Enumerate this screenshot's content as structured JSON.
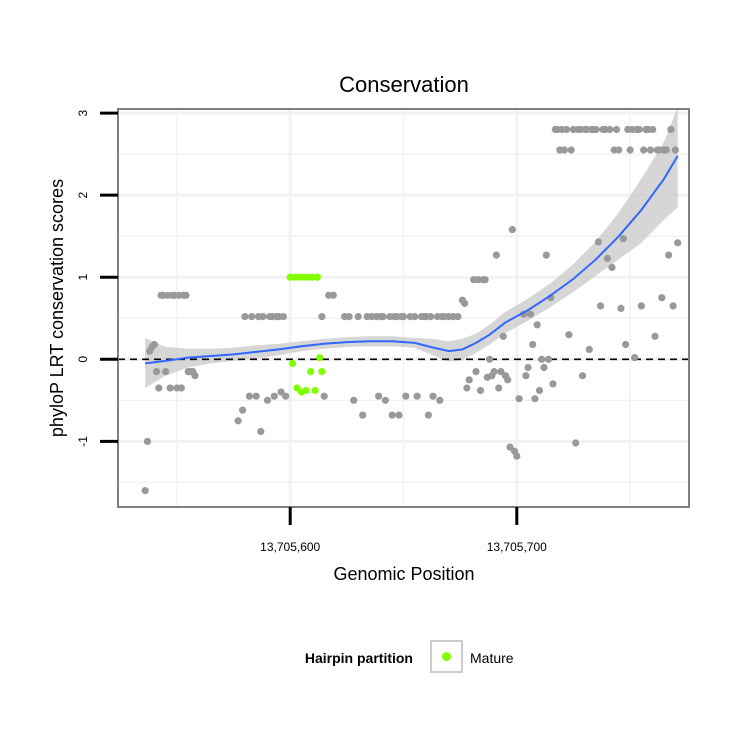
{
  "chart_data": {
    "type": "scatter",
    "title": "Conservation",
    "xlabel": "Genomic Position",
    "ylabel": "phyloP LRT conservation scores",
    "xlim": [
      13705524,
      13705776
    ],
    "ylim": [
      -1.8,
      3.05
    ],
    "x_ticks": [
      {
        "value": 13705600,
        "label": "13,705,600"
      },
      {
        "value": 13705700,
        "label": "13,705,700"
      }
    ],
    "y_ticks": [
      {
        "value": -1,
        "label": "-1"
      },
      {
        "value": 0,
        "label": "0"
      },
      {
        "value": 1,
        "label": "1"
      },
      {
        "value": 2,
        "label": "2"
      },
      {
        "value": 3,
        "label": "3"
      }
    ],
    "reference_line": {
      "y": 0,
      "style": "dashed"
    },
    "legend": {
      "title": "Hairpin partition",
      "placement": "bottom",
      "entries": [
        {
          "label": "Mature",
          "color": "#7fff00"
        }
      ]
    },
    "colors": {
      "other_points": "#999999",
      "mature_points": "#7fff00",
      "smooth_line": "#3366ff",
      "confidence_band": "#c8c8c8",
      "panel_border": "#7f7f7f",
      "grid": "#f2f2f2"
    },
    "series": [
      {
        "name": "Other",
        "points": [
          [
            13705536,
            -1.6
          ],
          [
            13705537,
            -1.0
          ],
          [
            13705538,
            0.1
          ],
          [
            13705539,
            0.15
          ],
          [
            13705540,
            0.18
          ],
          [
            13705541,
            -0.15
          ],
          [
            13705542,
            -0.35
          ],
          [
            13705543,
            0.78
          ],
          [
            13705544,
            0.78
          ],
          [
            13705545,
            -0.15
          ],
          [
            13705546,
            0.78
          ],
          [
            13705547,
            -0.35
          ],
          [
            13705548,
            0.78
          ],
          [
            13705549,
            0.78
          ],
          [
            13705550,
            -0.35
          ],
          [
            13705551,
            0.78
          ],
          [
            13705552,
            -0.35
          ],
          [
            13705553,
            0.78
          ],
          [
            13705554,
            0.78
          ],
          [
            13705555,
            -0.15
          ],
          [
            13705556,
            -0.15
          ],
          [
            13705557,
            -0.15
          ],
          [
            13705558,
            -0.2
          ],
          [
            13705577,
            -0.75
          ],
          [
            13705579,
            -0.62
          ],
          [
            13705580,
            0.52
          ],
          [
            13705582,
            -0.45
          ],
          [
            13705583,
            0.52
          ],
          [
            13705585,
            -0.45
          ],
          [
            13705586,
            0.52
          ],
          [
            13705587,
            -0.88
          ],
          [
            13705588,
            0.52
          ],
          [
            13705590,
            -0.5
          ],
          [
            13705591,
            0.52
          ],
          [
            13705592,
            0.52
          ],
          [
            13705593,
            -0.45
          ],
          [
            13705594,
            0.52
          ],
          [
            13705595,
            0.52
          ],
          [
            13705596,
            -0.4
          ],
          [
            13705597,
            0.52
          ],
          [
            13705598,
            -0.45
          ],
          [
            13705614,
            0.52
          ],
          [
            13705615,
            -0.45
          ],
          [
            13705617,
            0.78
          ],
          [
            13705619,
            0.78
          ],
          [
            13705624,
            0.52
          ],
          [
            13705626,
            0.52
          ],
          [
            13705628,
            -0.5
          ],
          [
            13705630,
            0.52
          ],
          [
            13705632,
            -0.68
          ],
          [
            13705634,
            0.52
          ],
          [
            13705636,
            0.52
          ],
          [
            13705638,
            0.52
          ],
          [
            13705639,
            -0.45
          ],
          [
            13705640,
            0.52
          ],
          [
            13705641,
            0.52
          ],
          [
            13705642,
            -0.5
          ],
          [
            13705644,
            0.52
          ],
          [
            13705645,
            -0.68
          ],
          [
            13705646,
            0.52
          ],
          [
            13705647,
            0.52
          ],
          [
            13705648,
            -0.68
          ],
          [
            13705649,
            0.52
          ],
          [
            13705650,
            0.52
          ],
          [
            13705651,
            -0.45
          ],
          [
            13705653,
            0.52
          ],
          [
            13705655,
            0.52
          ],
          [
            13705656,
            -0.45
          ],
          [
            13705658,
            0.52
          ],
          [
            13705659,
            0.52
          ],
          [
            13705660,
            0.52
          ],
          [
            13705661,
            -0.68
          ],
          [
            13705662,
            0.52
          ],
          [
            13705663,
            -0.45
          ],
          [
            13705665,
            0.52
          ],
          [
            13705666,
            -0.5
          ],
          [
            13705667,
            0.52
          ],
          [
            13705668,
            0.52
          ],
          [
            13705670,
            0.52
          ],
          [
            13705672,
            0.52
          ],
          [
            13705674,
            0.52
          ],
          [
            13705676,
            0.72
          ],
          [
            13705677,
            0.68
          ],
          [
            13705678,
            -0.35
          ],
          [
            13705679,
            -0.25
          ],
          [
            13705681,
            0.97
          ],
          [
            13705682,
            -0.15
          ],
          [
            13705683,
            0.97
          ],
          [
            13705684,
            -0.38
          ],
          [
            13705685,
            0.97
          ],
          [
            13705686,
            0.97
          ],
          [
            13705687,
            -0.22
          ],
          [
            13705688,
            0.0
          ],
          [
            13705689,
            -0.2
          ],
          [
            13705690,
            -0.15
          ],
          [
            13705691,
            1.27
          ],
          [
            13705692,
            -0.35
          ],
          [
            13705693,
            -0.15
          ],
          [
            13705694,
            0.28
          ],
          [
            13705695,
            -0.2
          ],
          [
            13705696,
            -0.25
          ],
          [
            13705697,
            -1.07
          ],
          [
            13705698,
            1.58
          ],
          [
            13705699,
            -1.12
          ],
          [
            13705700,
            -1.18
          ],
          [
            13705701,
            -0.48
          ],
          [
            13705703,
            0.55
          ],
          [
            13705704,
            -0.2
          ],
          [
            13705705,
            -0.1
          ],
          [
            13705706,
            0.55
          ],
          [
            13705707,
            0.18
          ],
          [
            13705708,
            -0.48
          ],
          [
            13705709,
            0.42
          ],
          [
            13705710,
            -0.38
          ],
          [
            13705711,
            0.0
          ],
          [
            13705712,
            -0.1
          ],
          [
            13705713,
            1.27
          ],
          [
            13705714,
            0.0
          ],
          [
            13705715,
            0.75
          ],
          [
            13705716,
            -0.3
          ],
          [
            13705717,
            2.8
          ],
          [
            13705718,
            2.8
          ],
          [
            13705719,
            2.55
          ],
          [
            13705720,
            2.8
          ],
          [
            13705721,
            2.55
          ],
          [
            13705722,
            2.8
          ],
          [
            13705723,
            0.3
          ],
          [
            13705724,
            2.55
          ],
          [
            13705725,
            2.8
          ],
          [
            13705726,
            -1.02
          ],
          [
            13705727,
            2.8
          ],
          [
            13705728,
            2.8
          ],
          [
            13705729,
            -0.2
          ],
          [
            13705730,
            2.8
          ],
          [
            13705731,
            2.8
          ],
          [
            13705732,
            0.12
          ],
          [
            13705733,
            2.8
          ],
          [
            13705734,
            2.8
          ],
          [
            13705735,
            2.8
          ],
          [
            13705736,
            1.43
          ],
          [
            13705737,
            0.65
          ],
          [
            13705738,
            2.8
          ],
          [
            13705739,
            2.8
          ],
          [
            13705740,
            1.23
          ],
          [
            13705741,
            2.8
          ],
          [
            13705742,
            1.12
          ],
          [
            13705743,
            2.55
          ],
          [
            13705744,
            2.8
          ],
          [
            13705745,
            2.55
          ],
          [
            13705746,
            0.62
          ],
          [
            13705747,
            1.47
          ],
          [
            13705748,
            0.18
          ],
          [
            13705749,
            2.8
          ],
          [
            13705750,
            2.55
          ],
          [
            13705751,
            2.8
          ],
          [
            13705752,
            0.02
          ],
          [
            13705753,
            2.8
          ],
          [
            13705754,
            2.8
          ],
          [
            13705755,
            0.65
          ],
          [
            13705756,
            2.55
          ],
          [
            13705757,
            2.8
          ],
          [
            13705758,
            2.8
          ],
          [
            13705759,
            2.55
          ],
          [
            13705760,
            2.8
          ],
          [
            13705761,
            0.28
          ],
          [
            13705762,
            2.55
          ],
          [
            13705763,
            2.55
          ],
          [
            13705764,
            0.75
          ],
          [
            13705765,
            2.55
          ],
          [
            13705766,
            2.55
          ],
          [
            13705767,
            1.27
          ],
          [
            13705768,
            2.8
          ],
          [
            13705769,
            0.65
          ],
          [
            13705770,
            2.55
          ],
          [
            13705771,
            1.42
          ]
        ]
      },
      {
        "name": "Mature",
        "points": [
          [
            13705600,
            1.0
          ],
          [
            13705601,
            -0.05
          ],
          [
            13705602,
            1.0
          ],
          [
            13705603,
            -0.35
          ],
          [
            13705604,
            1.0
          ],
          [
            13705605,
            -0.4
          ],
          [
            13705606,
            1.0
          ],
          [
            13705607,
            -0.38
          ],
          [
            13705608,
            1.0
          ],
          [
            13705609,
            -0.15
          ],
          [
            13705610,
            1.0
          ],
          [
            13705611,
            -0.38
          ],
          [
            13705612,
            1.0
          ],
          [
            13705613,
            0.02
          ],
          [
            13705614,
            -0.15
          ]
        ]
      }
    ],
    "smooth_fit": {
      "x": [
        13705536,
        13705545,
        13705555,
        13705565,
        13705575,
        13705585,
        13705595,
        13705605,
        13705615,
        13705625,
        13705635,
        13705645,
        13705655,
        13705662,
        13705670,
        13705676,
        13705682,
        13705688,
        13705695,
        13705705,
        13705715,
        13705725,
        13705735,
        13705745,
        13705755,
        13705765,
        13705771
      ],
      "y": [
        -0.05,
        -0.02,
        0.02,
        0.04,
        0.06,
        0.09,
        0.12,
        0.16,
        0.19,
        0.21,
        0.22,
        0.22,
        0.2,
        0.15,
        0.1,
        0.12,
        0.2,
        0.3,
        0.45,
        0.6,
        0.78,
        0.98,
        1.22,
        1.5,
        1.82,
        2.2,
        2.48
      ],
      "lower": [
        -0.35,
        -0.2,
        -0.1,
        -0.05,
        -0.02,
        0.01,
        0.05,
        0.1,
        0.13,
        0.15,
        0.16,
        0.16,
        0.14,
        0.06,
        -0.03,
        -0.01,
        0.08,
        0.18,
        0.32,
        0.47,
        0.64,
        0.82,
        1.02,
        1.22,
        1.42,
        1.7,
        1.85
      ],
      "upper": [
        0.26,
        0.15,
        0.13,
        0.13,
        0.14,
        0.17,
        0.19,
        0.22,
        0.25,
        0.27,
        0.28,
        0.28,
        0.26,
        0.25,
        0.22,
        0.25,
        0.31,
        0.42,
        0.58,
        0.74,
        0.93,
        1.16,
        1.44,
        1.79,
        2.2,
        2.65,
        3.08
      ]
    }
  }
}
